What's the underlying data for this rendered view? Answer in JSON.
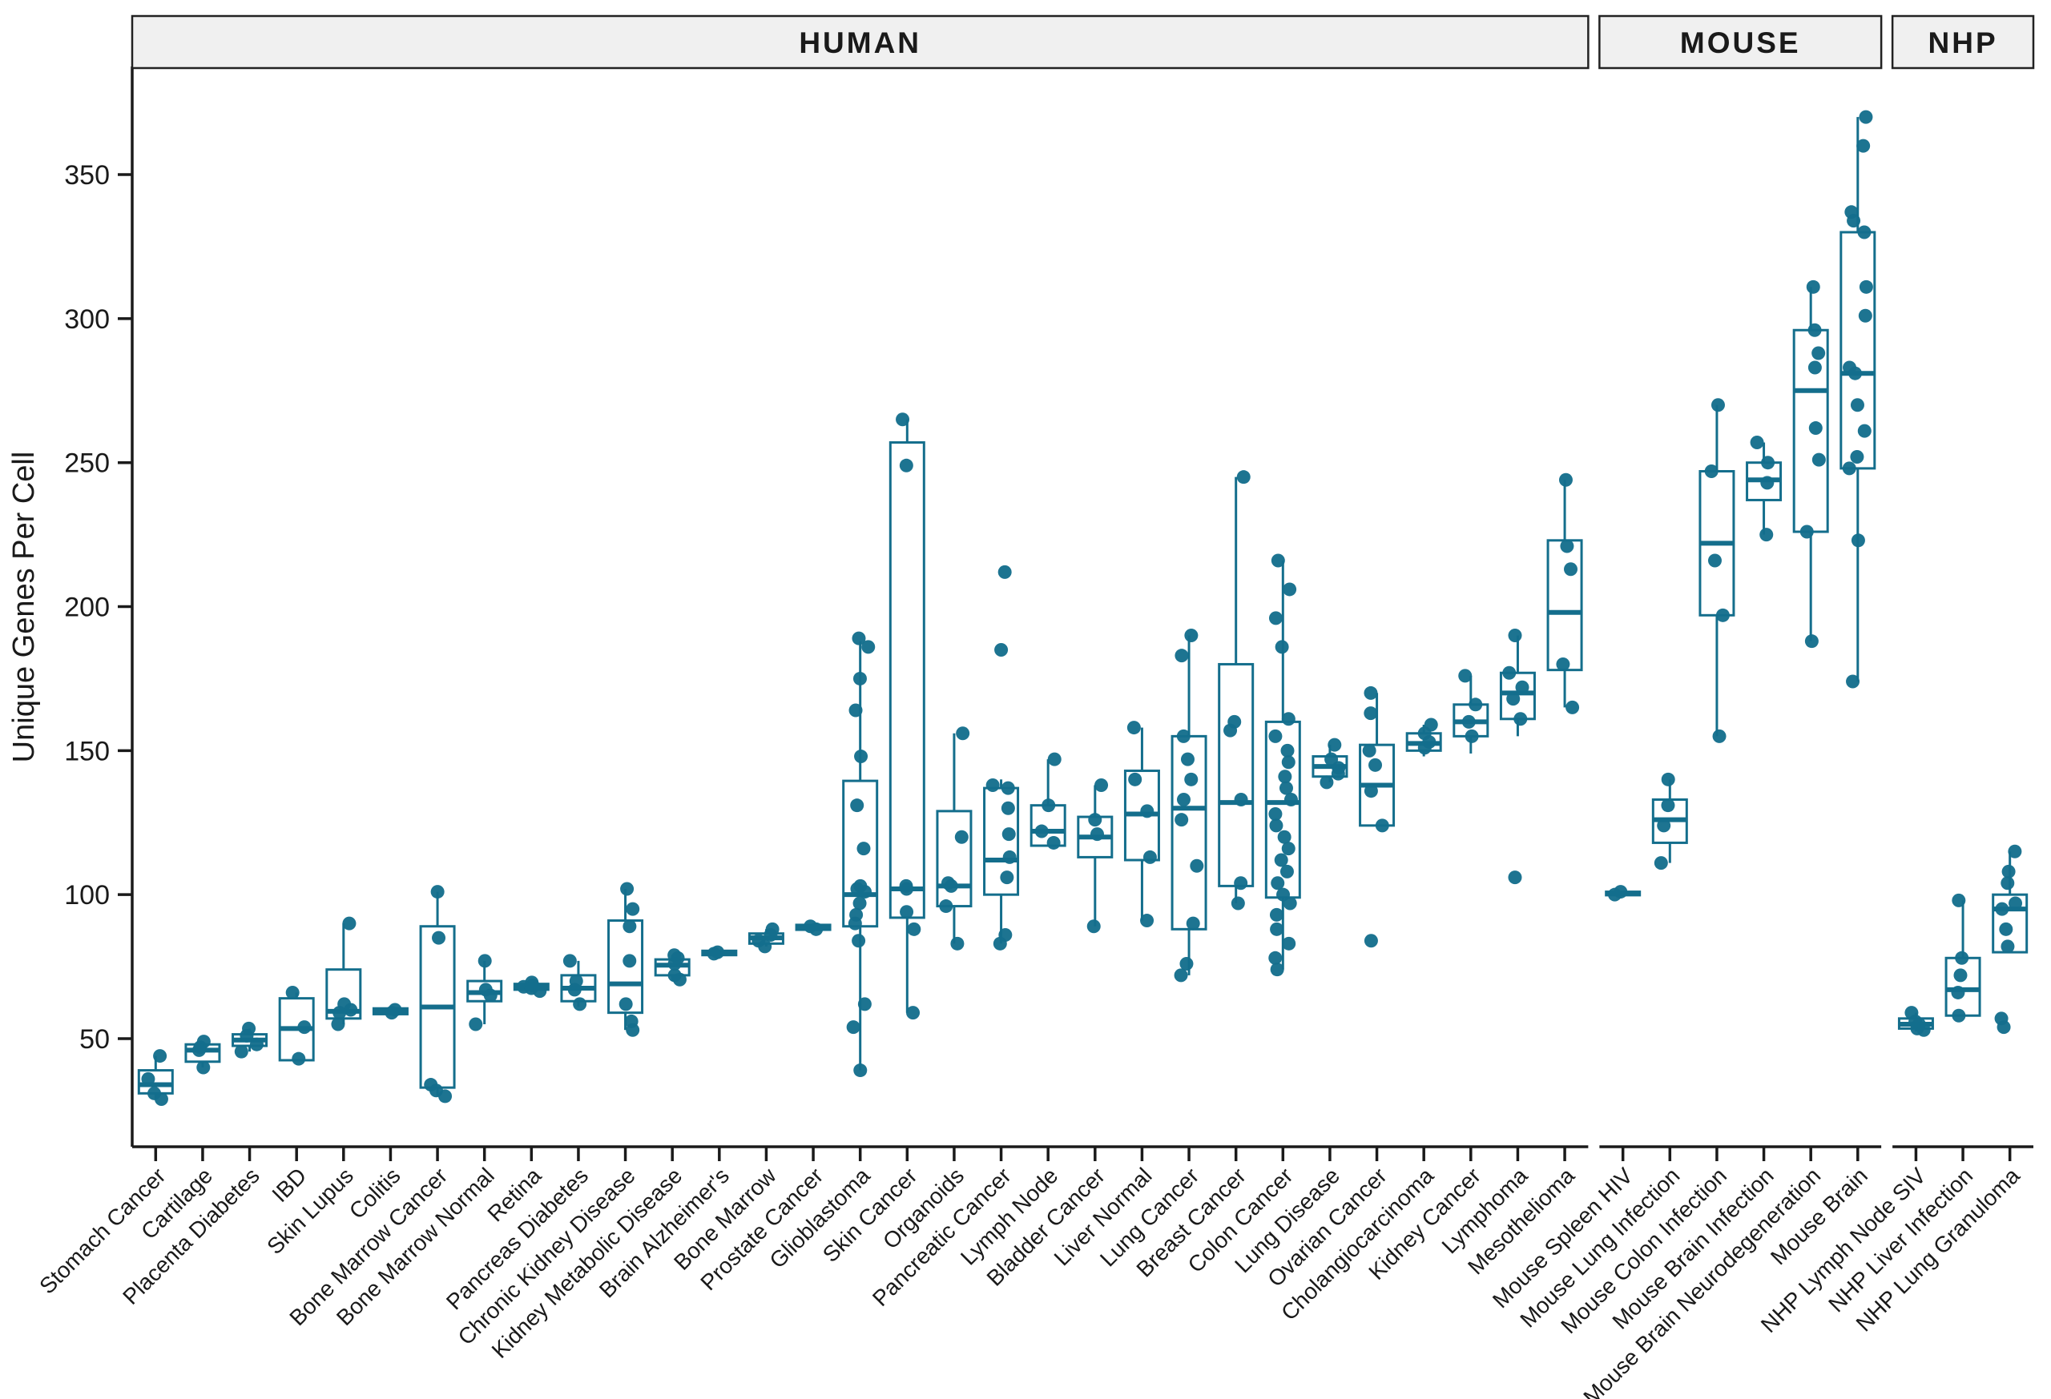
{
  "chart_data": {
    "type": "boxplot-jitter",
    "title": "",
    "ylabel": "Unique Genes Per Cell",
    "xlabel": "",
    "ylim": [
      13,
      387
    ],
    "yticks": [
      50,
      100,
      150,
      200,
      250,
      300,
      350
    ],
    "grid": "off",
    "legend": "none",
    "colors": {
      "accent": "#146e8c",
      "box_fill": "#ffffff",
      "strip_fill": "#f0f0f0",
      "strip_border": "#222222",
      "axis": "#1a1a1a",
      "background": "#ffffff"
    },
    "panels": [
      {
        "label": "HUMAN",
        "categories": [
          {
            "label": "Stomach Cancer",
            "box": [
              31,
              39
            ],
            "median": 34,
            "whiskers": [
              29,
              44
            ],
            "points": [
              44,
              36,
              31,
              29
            ]
          },
          {
            "label": "Cartilage",
            "box": [
              42,
              48
            ],
            "median": 46,
            "whiskers": [
              40,
              49
            ],
            "points": [
              49,
              47,
              46,
              40
            ]
          },
          {
            "label": "Placenta Diabetes",
            "box": [
              47.5,
              51.5
            ],
            "median": 49.5,
            "whiskers": [
              45.5,
              53.5
            ],
            "points": [
              53.5,
              51,
              48,
              45.5
            ]
          },
          {
            "label": "IBD",
            "box": [
              42.5,
              64
            ],
            "median": 53.5,
            "whiskers": [
              42.5,
              66
            ],
            "points": [
              66,
              54,
              43
            ]
          },
          {
            "label": "Skin Lupus",
            "box": [
              57,
              74
            ],
            "median": 59.5,
            "whiskers": [
              55,
              90
            ],
            "points": [
              90,
              62,
              60,
              59,
              55
            ]
          },
          {
            "label": "Colitis",
            "box": [
              58.5,
              60.5
            ],
            "median": 59.5,
            "whiskers": [
              58,
              61
            ],
            "points": [
              60,
              59
            ]
          },
          {
            "label": "Bone Marrow Cancer",
            "box": [
              33,
              89
            ],
            "median": 61,
            "whiskers": [
              30,
              101
            ],
            "points": [
              101,
              85,
              34,
              32,
              30
            ]
          },
          {
            "label": "Bone Marrow Normal",
            "box": [
              63,
              70
            ],
            "median": 66,
            "whiskers": [
              55,
              77
            ],
            "points": [
              77,
              67,
              65,
              55
            ]
          },
          {
            "label": "Retina",
            "box": [
              67,
              69
            ],
            "median": 68,
            "whiskers": [
              66,
              69.5
            ],
            "points": [
              69.5,
              68.5,
              68,
              67.5,
              66.5
            ]
          },
          {
            "label": "Pancreas Diabetes",
            "box": [
              63,
              72
            ],
            "median": 67.5,
            "whiskers": [
              61,
              77
            ],
            "points": [
              77,
              70,
              67,
              62
            ]
          },
          {
            "label": "Chronic Kidney Disease",
            "box": [
              59,
              91
            ],
            "median": 69,
            "whiskers": [
              53,
              102
            ],
            "points": [
              102,
              95,
              89,
              77,
              62,
              56,
              53
            ]
          },
          {
            "label": "Kidney Metabolic Disease",
            "box": [
              72,
              77.5
            ],
            "median": 75.5,
            "whiskers": [
              70,
              79
            ],
            "points": [
              79,
              78,
              76,
              72,
              70.5
            ]
          },
          {
            "label": "Brain Alzheimer's",
            "box": [
              79,
              80.5
            ],
            "median": 79.8,
            "whiskers": [
              78.8,
              80.7
            ],
            "points": [
              80,
              79.5
            ]
          },
          {
            "label": "Bone Marrow",
            "box": [
              83,
              86.5
            ],
            "median": 85,
            "whiskers": [
              82,
              88
            ],
            "points": [
              88,
              86,
              84,
              82
            ]
          },
          {
            "label": "Prostate Cancer",
            "box": [
              87.8,
              89.5
            ],
            "median": 88.6,
            "whiskers": [
              87.5,
              89.8
            ],
            "points": [
              89,
              88
            ]
          },
          {
            "label": "Glioblastoma",
            "box": [
              89,
              139.5
            ],
            "median": 100,
            "whiskers": [
              39,
              188
            ],
            "points": [
              189,
              186,
              175,
              164,
              148,
              131,
              116,
              103,
              102,
              101,
              97,
              93,
              90,
              84,
              62,
              54,
              39
            ]
          },
          {
            "label": "Skin Cancer",
            "box": [
              92,
              257
            ],
            "median": 102,
            "whiskers": [
              59,
              265
            ],
            "points": [
              265,
              249,
              103,
              102,
              94,
              88,
              59
            ]
          },
          {
            "label": "Organoids",
            "box": [
              96,
              129
            ],
            "median": 103,
            "whiskers": [
              83,
              156
            ],
            "points": [
              156,
              120,
              104,
              103,
              96,
              83
            ]
          },
          {
            "label": "Pancreatic Cancer",
            "box": [
              100,
              137
            ],
            "median": 112,
            "whiskers": [
              83,
              140
            ],
            "points": [
              212,
              185,
              138,
              137,
              130,
              121,
              113,
              106,
              86,
              83
            ]
          },
          {
            "label": "Lymph Node",
            "box": [
              117,
              131
            ],
            "median": 122,
            "whiskers": [
              117,
              147
            ],
            "points": [
              147,
              131,
              122,
              118
            ]
          },
          {
            "label": "Bladder Cancer",
            "box": [
              113,
              127
            ],
            "median": 120,
            "whiskers": [
              89,
              138
            ],
            "points": [
              138,
              126,
              121,
              89
            ]
          },
          {
            "label": "Liver Normal",
            "box": [
              112,
              143
            ],
            "median": 128,
            "whiskers": [
              91,
              158
            ],
            "points": [
              158,
              140,
              129,
              113,
              91
            ]
          },
          {
            "label": "Lung Cancer",
            "box": [
              88,
              155
            ],
            "median": 130,
            "whiskers": [
              72,
              190
            ],
            "points": [
              190,
              183,
              155,
              147,
              140,
              133,
              126,
              110,
              90,
              76,
              72
            ]
          },
          {
            "label": "Breast Cancer",
            "box": [
              103,
              180
            ],
            "median": 132,
            "whiskers": [
              97,
              245
            ],
            "points": [
              245,
              160,
              157,
              133,
              104,
              97
            ]
          },
          {
            "label": "Colon Cancer",
            "box": [
              99,
              160
            ],
            "median": 132,
            "whiskers": [
              74,
              216
            ],
            "points": [
              216,
              206,
              196,
              186,
              161,
              155,
              150,
              146,
              141,
              137,
              133,
              128,
              124,
              120,
              116,
              112,
              108,
              104,
              100,
              97,
              93,
              88,
              83,
              78,
              74
            ]
          },
          {
            "label": "Lung Disease",
            "box": [
              141,
              148
            ],
            "median": 144.5,
            "whiskers": [
              139,
              152
            ],
            "points": [
              152,
              147,
              144,
              142,
              139
            ]
          },
          {
            "label": "Ovarian Cancer",
            "box": [
              124,
              152
            ],
            "median": 138,
            "whiskers": [
              124,
              170
            ],
            "points": [
              170,
              163,
              150,
              145,
              136,
              124,
              84
            ]
          },
          {
            "label": "Cholangiocarcinoma",
            "box": [
              150,
              156
            ],
            "median": 152.5,
            "whiskers": [
              148,
              159
            ],
            "points": [
              159,
              156,
              153,
              151
            ]
          },
          {
            "label": "Kidney Cancer",
            "box": [
              155,
              166
            ],
            "median": 160,
            "whiskers": [
              149,
              176
            ],
            "points": [
              176,
              166,
              160,
              155
            ]
          },
          {
            "label": "Lymphoma",
            "box": [
              161,
              177
            ],
            "median": 170,
            "whiskers": [
              155,
              190
            ],
            "points": [
              190,
              177,
              172,
              168,
              161,
              106
            ]
          },
          {
            "label": "Mesothelioma",
            "box": [
              178,
              223
            ],
            "median": 198,
            "whiskers": [
              165,
              244
            ],
            "points": [
              244,
              221,
              213,
              180,
              165
            ]
          }
        ]
      },
      {
        "label": "MOUSE",
        "categories": [
          {
            "label": "Mouse Spleen HIV",
            "box": [
              99.8,
              101
            ],
            "median": 100.4,
            "whiskers": [
              99.5,
              101.3
            ],
            "points": [
              101,
              100
            ]
          },
          {
            "label": "Mouse Lung Infection",
            "box": [
              118,
              133
            ],
            "median": 126,
            "whiskers": [
              111,
              140
            ],
            "points": [
              140,
              131,
              124,
              111
            ]
          },
          {
            "label": "Mouse Colon Infection",
            "box": [
              197,
              247
            ],
            "median": 222,
            "whiskers": [
              155,
              270
            ],
            "points": [
              270,
              247,
              216,
              197,
              155
            ]
          },
          {
            "label": "Mouse Brain Infection",
            "box": [
              237,
              250
            ],
            "median": 244,
            "whiskers": [
              225,
              257
            ],
            "points": [
              257,
              250,
              243,
              225
            ]
          },
          {
            "label": "Mouse Brain Neurodegeneration",
            "box": [
              226,
              296
            ],
            "median": 275,
            "whiskers": [
              188,
              311
            ],
            "points": [
              311,
              296,
              288,
              283,
              262,
              251,
              226,
              188
            ]
          },
          {
            "label": "Mouse Brain",
            "box": [
              248,
              330
            ],
            "median": 281,
            "whiskers": [
              174,
              370
            ],
            "points": [
              370,
              360,
              337,
              334,
              330,
              311,
              301,
              283,
              281,
              270,
              261,
              252,
              248,
              223,
              174
            ]
          }
        ]
      },
      {
        "label": "NHP",
        "categories": [
          {
            "label": "NHP Lymph Node SIV",
            "box": [
              53.5,
              57
            ],
            "median": 55,
            "whiskers": [
              52.5,
              59
            ],
            "points": [
              59,
              56,
              55,
              53.5,
              53
            ]
          },
          {
            "label": "NHP Liver Infection",
            "box": [
              58,
              78
            ],
            "median": 67,
            "whiskers": [
              58,
              98
            ],
            "points": [
              98,
              78,
              72,
              66,
              58
            ]
          },
          {
            "label": "NHP Lung Granuloma",
            "box": [
              80,
              100
            ],
            "median": 95,
            "whiskers": [
              82,
              115
            ],
            "points": [
              115,
              108,
              104,
              97,
              95,
              88,
              82,
              57,
              54
            ]
          }
        ]
      }
    ]
  }
}
